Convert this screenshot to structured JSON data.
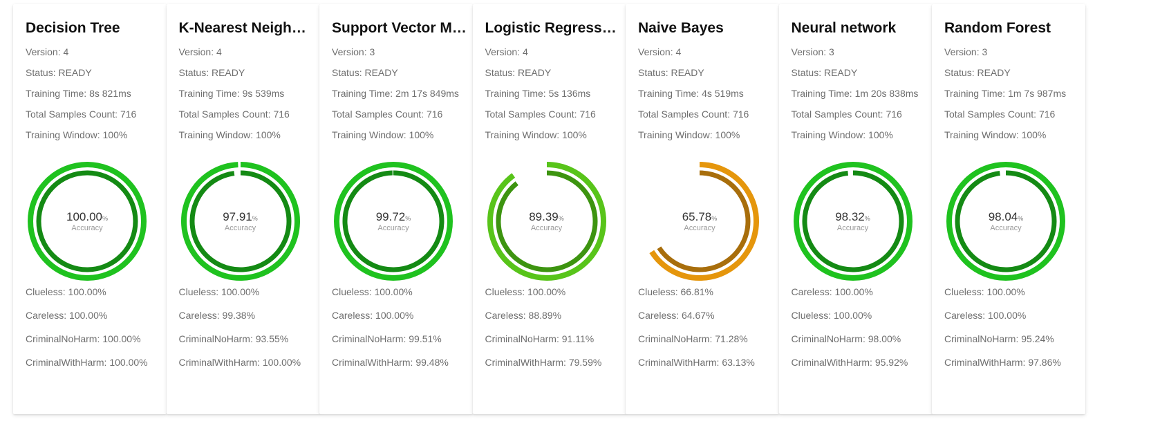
{
  "fields": {
    "version_label": "Version:",
    "status_label": "Status:",
    "training_time_label": "Training Time:",
    "samples_label": "Total Samples Count:",
    "window_label": "Training Window:",
    "accuracy_label": "Accuracy",
    "percent_sign": "%"
  },
  "colors": {
    "green_light": "#1fc21f",
    "green_dark": "#148a14",
    "lime_light": "#58c41a",
    "lime_dark": "#3d9410",
    "orange_light": "#e5960c",
    "orange_dark": "#a86e0c",
    "track": "#e6e6e6"
  },
  "models": [
    {
      "title": "Decision Tree",
      "version": "4",
      "status": "READY",
      "training_time": "8s 821ms",
      "samples": "716",
      "window": "100%",
      "accuracy": "100.00",
      "accuracy_fraction": 1.0,
      "outer_fraction": 1.0,
      "tone": "green",
      "classes": [
        {
          "name": "Clueless:",
          "value": "100.00%"
        },
        {
          "name": "Careless:",
          "value": "100.00%"
        },
        {
          "name": "CriminalNoHarm:",
          "value": "100.00%"
        },
        {
          "name": "CriminalWithHarm:",
          "value": "100.00%"
        }
      ]
    },
    {
      "title": "K-Nearest Neighbors",
      "version": "4",
      "status": "READY",
      "training_time": "9s 539ms",
      "samples": "716",
      "window": "100%",
      "accuracy": "97.91",
      "accuracy_fraction": 0.9791,
      "outer_fraction": 0.993,
      "tone": "green",
      "classes": [
        {
          "name": "Clueless:",
          "value": "100.00%"
        },
        {
          "name": "Careless:",
          "value": "99.38%"
        },
        {
          "name": "CriminalNoHarm:",
          "value": "93.55%"
        },
        {
          "name": "CriminalWithHarm:",
          "value": "100.00%"
        }
      ]
    },
    {
      "title": "Support Vector Machine",
      "version": "3",
      "status": "READY",
      "training_time": "2m 17s 849ms",
      "samples": "716",
      "window": "100%",
      "accuracy": "99.72",
      "accuracy_fraction": 0.9972,
      "outer_fraction": 1.0,
      "tone": "green",
      "classes": [
        {
          "name": "Clueless:",
          "value": "100.00%"
        },
        {
          "name": "Careless:",
          "value": "100.00%"
        },
        {
          "name": "CriminalNoHarm:",
          "value": "99.51%"
        },
        {
          "name": "CriminalWithHarm:",
          "value": "99.48%"
        }
      ]
    },
    {
      "title": "Logistic Regression",
      "version": "4",
      "status": "READY",
      "training_time": "5s 136ms",
      "samples": "716",
      "window": "100%",
      "accuracy": "89.39",
      "accuracy_fraction": 0.8939,
      "outer_fraction": 0.9,
      "tone": "lime",
      "classes": [
        {
          "name": "Clueless:",
          "value": "100.00%"
        },
        {
          "name": "Careless:",
          "value": "88.89%"
        },
        {
          "name": "CriminalNoHarm:",
          "value": "91.11%"
        },
        {
          "name": "CriminalWithHarm:",
          "value": "79.59%"
        }
      ]
    },
    {
      "title": "Naive Bayes",
      "version": "4",
      "status": "READY",
      "training_time": "4s 519ms",
      "samples": "716",
      "window": "100%",
      "accuracy": "65.78",
      "accuracy_fraction": 0.6578,
      "outer_fraction": 0.66,
      "tone": "orange",
      "classes": [
        {
          "name": "Clueless:",
          "value": "66.81%"
        },
        {
          "name": "Careless:",
          "value": "64.67%"
        },
        {
          "name": "CriminalNoHarm:",
          "value": "71.28%"
        },
        {
          "name": "CriminalWithHarm:",
          "value": "63.13%"
        }
      ]
    },
    {
      "title": "Neural network",
      "version": "3",
      "status": "READY",
      "training_time": "1m 20s 838ms",
      "samples": "716",
      "window": "100%",
      "accuracy": "98.32",
      "accuracy_fraction": 0.9832,
      "outer_fraction": 1.0,
      "tone": "green",
      "classes": [
        {
          "name": "Careless:",
          "value": "100.00%"
        },
        {
          "name": "Clueless:",
          "value": "100.00%"
        },
        {
          "name": "CriminalNoHarm:",
          "value": "98.00%"
        },
        {
          "name": "CriminalWithHarm:",
          "value": "95.92%"
        }
      ]
    },
    {
      "title": "Random Forest",
      "version": "3",
      "status": "READY",
      "training_time": "1m 7s 987ms",
      "samples": "716",
      "window": "100%",
      "accuracy": "98.04",
      "accuracy_fraction": 0.9804,
      "outer_fraction": 1.0,
      "tone": "green",
      "classes": [
        {
          "name": "Clueless:",
          "value": "100.00%"
        },
        {
          "name": "Careless:",
          "value": "100.00%"
        },
        {
          "name": "CriminalNoHarm:",
          "value": "95.24%"
        },
        {
          "name": "CriminalWithHarm:",
          "value": "97.86%"
        }
      ]
    }
  ]
}
